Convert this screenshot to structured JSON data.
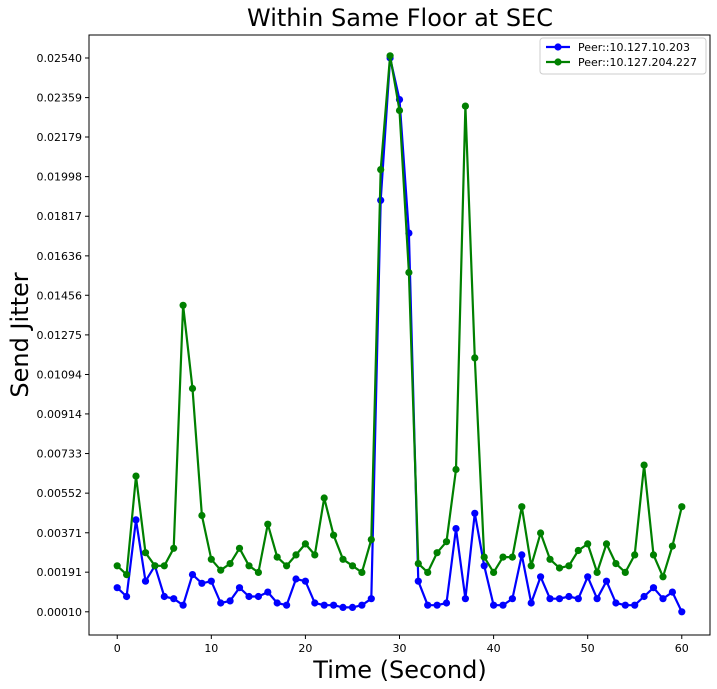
{
  "chart_data": {
    "type": "line",
    "title": "Within Same Floor at SEC",
    "xlabel": "Time (Second)",
    "ylabel": "Send Jitter",
    "xlim": [
      -3,
      63
    ],
    "ylim": [
      -0.00096,
      0.02645
    ],
    "x_ticks": [
      0,
      10,
      20,
      30,
      40,
      50,
      60
    ],
    "y_ticks": [
      0.0001,
      0.00191,
      0.00371,
      0.00552,
      0.00733,
      0.00914,
      0.01094,
      0.01275,
      0.01456,
      0.01636,
      0.01817,
      0.01998,
      0.02179,
      0.02359,
      0.0254
    ],
    "y_tick_labels": [
      "0.00010",
      "0.00191",
      "0.00371",
      "0.00552",
      "0.00733",
      "0.00914",
      "0.01094",
      "0.01275",
      "0.01456",
      "0.01636",
      "0.01817",
      "0.01998",
      "0.02179",
      "0.02359",
      "0.02540"
    ],
    "legend_position": "top-right",
    "grid": false,
    "x": [
      0,
      1,
      2,
      3,
      4,
      5,
      6,
      7,
      8,
      9,
      10,
      11,
      12,
      13,
      14,
      15,
      16,
      17,
      18,
      19,
      20,
      21,
      22,
      23,
      24,
      25,
      26,
      27,
      28,
      29,
      30,
      31,
      32,
      33,
      34,
      35,
      36,
      37,
      38,
      39,
      40,
      41,
      42,
      43,
      44,
      45,
      46,
      47,
      48,
      49,
      50,
      51,
      52,
      53,
      54,
      55,
      56,
      57,
      58,
      59,
      60
    ],
    "series": [
      {
        "name": "Peer::10.127.10.203",
        "color": "#0000ff",
        "values": [
          0.0012,
          0.0008,
          0.0043,
          0.0015,
          0.0022,
          0.0008,
          0.0007,
          0.0004,
          0.0018,
          0.0014,
          0.0015,
          0.0005,
          0.0006,
          0.0012,
          0.0008,
          0.0008,
          0.001,
          0.0005,
          0.0004,
          0.0016,
          0.0015,
          0.0005,
          0.0004,
          0.0004,
          0.0003,
          0.0003,
          0.0004,
          0.0007,
          0.0189,
          0.0254,
          0.0235,
          0.0174,
          0.0015,
          0.0004,
          0.0004,
          0.0005,
          0.0039,
          0.0007,
          0.0046,
          0.0022,
          0.0004,
          0.0004,
          0.0007,
          0.0027,
          0.0005,
          0.0017,
          0.0007,
          0.0007,
          0.0008,
          0.0007,
          0.0017,
          0.0007,
          0.0015,
          0.0005,
          0.0004,
          0.0004,
          0.0008,
          0.0012,
          0.0007,
          0.001,
          0.0001
        ]
      },
      {
        "name": "Peer::10.127.204.227",
        "color": "#008000",
        "values": [
          0.0022,
          0.0018,
          0.0063,
          0.0028,
          0.0022,
          0.0022,
          0.003,
          0.0141,
          0.0103,
          0.0045,
          0.0025,
          0.002,
          0.0023,
          0.003,
          0.0022,
          0.0019,
          0.0041,
          0.0026,
          0.0022,
          0.0027,
          0.0032,
          0.0027,
          0.0053,
          0.0036,
          0.0025,
          0.0022,
          0.0019,
          0.0034,
          0.0203,
          0.0255,
          0.023,
          0.0156,
          0.0023,
          0.0019,
          0.0028,
          0.0033,
          0.0066,
          0.0232,
          0.0117,
          0.0026,
          0.0019,
          0.0026,
          0.0026,
          0.0049,
          0.0022,
          0.0037,
          0.0025,
          0.0021,
          0.0022,
          0.0029,
          0.0032,
          0.0019,
          0.0032,
          0.0023,
          0.0019,
          0.0027,
          0.0068,
          0.0027,
          0.0017,
          0.0031,
          0.0049
        ]
      }
    ]
  }
}
